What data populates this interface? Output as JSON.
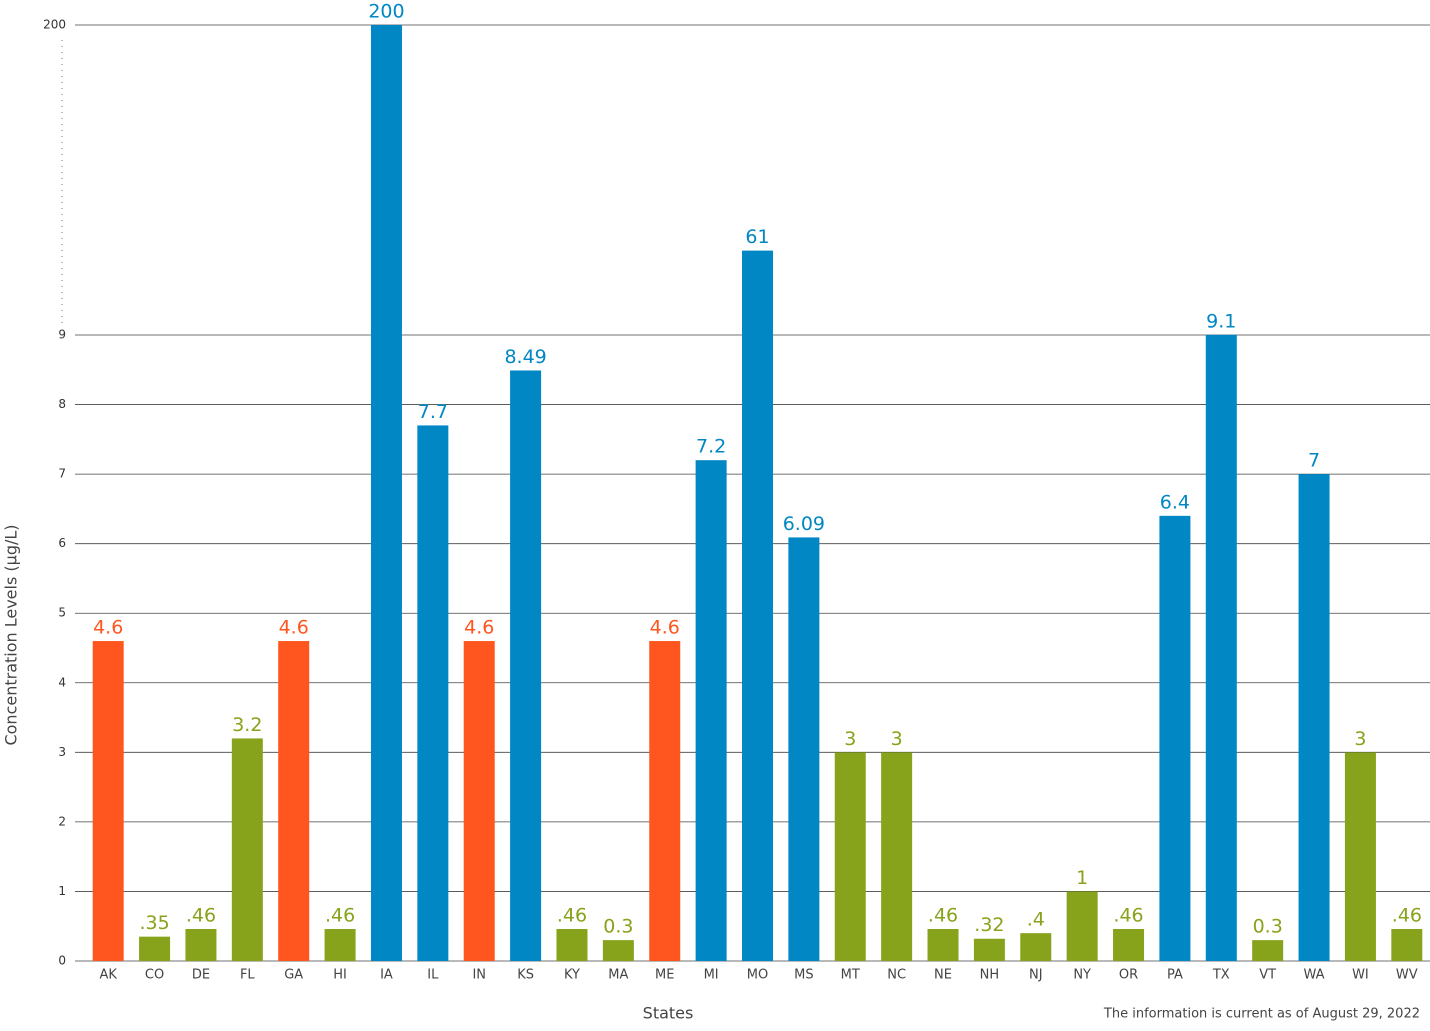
{
  "chart_data": {
    "type": "bar",
    "x_label": "States",
    "y_label": "Concentration Levels (µg/L)",
    "footnote": "The information is current as of August 29, 2022",
    "categories": [
      "AK",
      "CO",
      "DE",
      "FL",
      "GA",
      "HI",
      "IA",
      "IL",
      "IN",
      "KS",
      "KY",
      "MA",
      "ME",
      "MI",
      "MO",
      "MS",
      "MT",
      "NC",
      "NE",
      "NH",
      "NJ",
      "NY",
      "OR",
      "PA",
      "TX",
      "VT",
      "WA",
      "WI",
      "WV"
    ],
    "values": [
      4.6,
      0.35,
      0.46,
      3.2,
      4.6,
      0.46,
      200,
      7.7,
      4.6,
      8.49,
      0.46,
      0.3,
      4.6,
      7.2,
      61,
      6.09,
      3,
      3,
      0.46,
      0.32,
      0.4,
      1,
      0.46,
      6.4,
      9.1,
      0.3,
      7,
      3,
      0.46
    ],
    "value_labels": [
      "4.6",
      ".35",
      ".46",
      "3.2",
      "4.6",
      ".46",
      "200",
      "7.7",
      "4.6",
      "8.49",
      ".46",
      "0.3",
      "4.6",
      "7.2",
      "61",
      "6.09",
      "3",
      "3",
      ".46",
      ".32",
      ".4",
      "1",
      ".46",
      "6.4",
      "9.1",
      "0.3",
      "7",
      "3",
      ".46"
    ],
    "colors": [
      "#ff561f",
      "#87a31b",
      "#87a31b",
      "#87a31b",
      "#ff561f",
      "#87a31b",
      "#0087c4",
      "#0087c4",
      "#ff561f",
      "#0087c4",
      "#87a31b",
      "#87a31b",
      "#ff561f",
      "#0087c4",
      "#0087c4",
      "#0087c4",
      "#87a31b",
      "#87a31b",
      "#87a31b",
      "#87a31b",
      "#87a31b",
      "#87a31b",
      "#87a31b",
      "#0087c4",
      "#0087c4",
      "#87a31b",
      "#0087c4",
      "#87a31b",
      "#87a31b"
    ],
    "ylim": [
      0,
      200
    ],
    "yticks": [
      0,
      1,
      2,
      3,
      4,
      5,
      6,
      7,
      8,
      9,
      200
    ],
    "axis_break": 9,
    "grid": true
  }
}
